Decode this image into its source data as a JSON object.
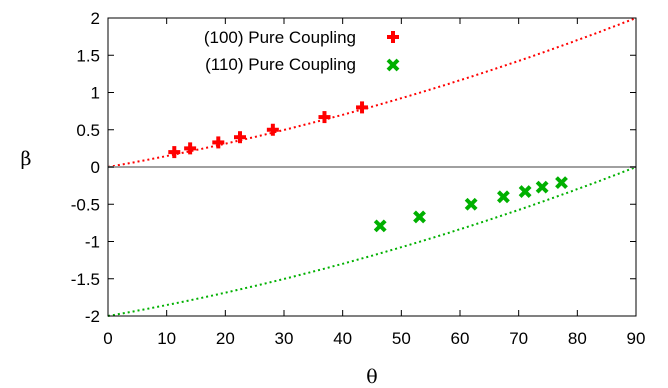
{
  "chart_data": {
    "type": "scatter",
    "xlabel": "θ",
    "ylabel": "β",
    "xlim": [
      0,
      90
    ],
    "ylim": [
      -2,
      2
    ],
    "xticks": [
      0,
      10,
      20,
      30,
      40,
      50,
      60,
      70,
      80,
      90
    ],
    "yticks": [
      2,
      1.5,
      1,
      0.5,
      0,
      -0.5,
      -1,
      -1.5,
      -2
    ],
    "ytick_labels": [
      "2",
      "1.5",
      "1",
      "0.5",
      "0",
      "-0.5",
      "-1",
      "-1.5",
      "-2"
    ],
    "grid": false,
    "legend_position": "top-left",
    "zero_line_color": "#a0a0a0",
    "series": [
      {
        "name": "(100) Pure Coupling",
        "marker": "plus",
        "color": "#ff0000",
        "x": [
          11.3,
          14.0,
          18.8,
          22.5,
          28.1,
          36.9,
          43.3
        ],
        "y": [
          0.2,
          0.25,
          0.33,
          0.4,
          0.5,
          0.67,
          0.8
        ]
      },
      {
        "name": "(110) Pure Coupling",
        "marker": "cross",
        "color": "#00b000",
        "x": [
          46.4,
          53.1,
          61.9,
          67.4,
          71.1,
          74.0,
          77.3
        ],
        "y": [
          -0.79,
          -0.67,
          -0.5,
          -0.4,
          -0.33,
          -0.27,
          -0.21
        ]
      }
    ],
    "fit_curves": [
      {
        "color": "#ff0000",
        "style": "dotted",
        "x": [
          0,
          90
        ],
        "y": [
          0,
          2
        ]
      },
      {
        "color": "#00b000",
        "style": "dotted",
        "x": [
          0,
          90
        ],
        "y": [
          -2,
          0
        ]
      }
    ]
  }
}
